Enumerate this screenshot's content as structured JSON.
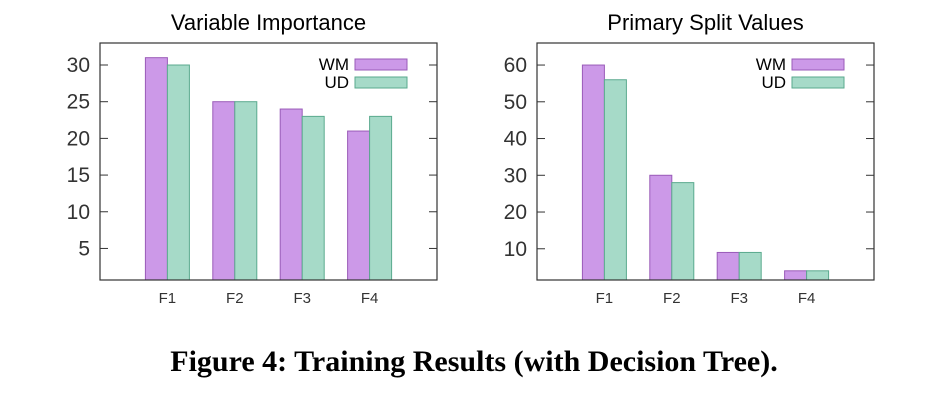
{
  "chart_data": [
    {
      "type": "bar",
      "title": "Variable Importance",
      "categories": [
        "F1",
        "F2",
        "F3",
        "F4"
      ],
      "series": [
        {
          "name": "WM",
          "values": [
            31,
            25,
            24,
            21
          ]
        },
        {
          "name": "UD",
          "values": [
            30,
            25,
            23,
            23
          ]
        }
      ],
      "xlabel": "",
      "ylabel": "",
      "ylim": [
        0.7,
        33
      ],
      "yticks": [
        5,
        10,
        15,
        20,
        25,
        30
      ],
      "legend": "top-right",
      "grid": false
    },
    {
      "type": "bar",
      "title": "Primary Split Values",
      "categories": [
        "F1",
        "F2",
        "F3",
        "F4"
      ],
      "series": [
        {
          "name": "WM",
          "values": [
            60,
            30,
            9,
            4
          ]
        },
        {
          "name": "UD",
          "values": [
            56,
            28,
            9,
            4
          ]
        }
      ],
      "xlabel": "",
      "ylabel": "",
      "ylim": [
        1.5,
        66
      ],
      "yticks": [
        10,
        20,
        30,
        40,
        50,
        60
      ],
      "legend": "top-right",
      "grid": false
    }
  ],
  "colors": {
    "WM_fill": "#cc99e8",
    "WM_stroke": "#9a5bb8",
    "UD_fill": "#a6dac8",
    "UD_stroke": "#5aaa8e",
    "axis": "#333333"
  },
  "caption": "Figure 4: Training Results (with Decision Tree)."
}
